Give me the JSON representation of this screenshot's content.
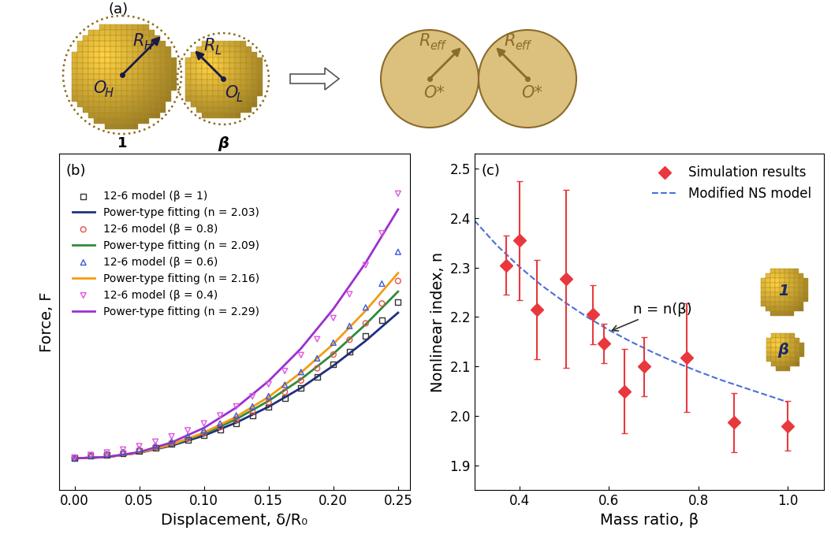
{
  "diagram": {
    "panel_label": "(a)",
    "before": {
      "radius_labels": [
        {
          "main": "R",
          "sub": "H"
        },
        {
          "main": "R",
          "sub": "L"
        }
      ],
      "center_labels": [
        {
          "main": "O",
          "sub": "H"
        },
        {
          "main": "O",
          "sub": "L"
        }
      ],
      "mass_labels": [
        "1",
        "β"
      ]
    },
    "after": {
      "radius_label": {
        "main": "R",
        "sub": "eff"
      },
      "center_label": "O*"
    }
  },
  "chart_data": [
    {
      "type": "line",
      "title": "(b)",
      "x_label": "Displacement, δ/R₀",
      "y_label": "Force, F",
      "xlim": [
        -0.012,
        0.259
      ],
      "ylim": [
        -0.12,
        1.15
      ],
      "xticks": [
        {
          "value": 0.0,
          "label": "0.00"
        },
        {
          "value": 0.05,
          "label": "0.05"
        },
        {
          "value": 0.1,
          "label": "0.10"
        },
        {
          "value": 0.15,
          "label": "0.15"
        },
        {
          "value": 0.2,
          "label": "0.20"
        },
        {
          "value": 0.25,
          "label": "0.25"
        }
      ],
      "yticks": [],
      "tick_labels": "x",
      "grid": false,
      "legend": "upper left",
      "series": [
        {
          "name": "12-6 model (β = 1)",
          "type": "scatter",
          "marker": "square",
          "color": "#333333",
          "x": [
            0,
            0.0125,
            0.025,
            0.0375,
            0.05,
            0.0625,
            0.075,
            0.0875,
            0.1,
            0.1125,
            0.125,
            0.1375,
            0.15,
            0.1625,
            0.175,
            0.1875,
            0.2,
            0.2125,
            0.225,
            0.2375,
            0.25
          ],
          "values": [
            0.002,
            0.009,
            0.013,
            0.02,
            0.029,
            0.04,
            0.054,
            0.069,
            0.087,
            0.108,
            0.133,
            0.161,
            0.193,
            0.228,
            0.266,
            0.307,
            0.354,
            0.402,
            0.462,
            0.522,
            0.59
          ]
        },
        {
          "name": "Power-type fitting (n = 2.03)",
          "type": "line",
          "line_style": "solid",
          "color": "#1f2f80",
          "x": [
            0,
            0.025,
            0.05,
            0.075,
            0.1,
            0.125,
            0.15,
            0.175,
            0.2,
            0.225,
            0.25
          ],
          "values": [
            0,
            0.0051,
            0.021,
            0.048,
            0.086,
            0.135,
            0.195,
            0.266,
            0.35,
            0.444,
            0.55
          ]
        },
        {
          "name": "12-6 model (β = 0.8)",
          "type": "scatter",
          "marker": "circle",
          "color": "#e8504a",
          "x": [
            0,
            0.0125,
            0.025,
            0.0375,
            0.05,
            0.0625,
            0.075,
            0.0875,
            0.1,
            0.1125,
            0.125,
            0.1375,
            0.15,
            0.1625,
            0.175,
            0.1875,
            0.2,
            0.2125,
            0.225,
            0.2375,
            0.25
          ],
          "values": [
            0.002,
            0.01,
            0.014,
            0.021,
            0.031,
            0.043,
            0.058,
            0.075,
            0.095,
            0.118,
            0.146,
            0.177,
            0.212,
            0.251,
            0.294,
            0.34,
            0.392,
            0.448,
            0.51,
            0.585,
            0.67
          ]
        },
        {
          "name": "Power-type fitting (n = 2.09)",
          "type": "line",
          "line_style": "solid",
          "color": "#2e8b3a",
          "x": [
            0,
            0.025,
            0.05,
            0.075,
            0.1,
            0.125,
            0.15,
            0.175,
            0.2,
            0.225,
            0.25
          ],
          "values": [
            0,
            0.0051,
            0.0218,
            0.0509,
            0.0929,
            0.148,
            0.217,
            0.299,
            0.395,
            0.506,
            0.63
          ]
        },
        {
          "name": "12-6 model (β = 0.6)",
          "type": "scatter",
          "marker": "triangle",
          "color": "#3b5bdb",
          "x": [
            0,
            0.0125,
            0.025,
            0.0375,
            0.05,
            0.0625,
            0.075,
            0.0875,
            0.1,
            0.1125,
            0.125,
            0.1375,
            0.15,
            0.1625,
            0.175,
            0.1875,
            0.2,
            0.2125,
            0.225,
            0.2375,
            0.25
          ],
          "values": [
            0.002,
            0.011,
            0.016,
            0.024,
            0.034,
            0.048,
            0.064,
            0.083,
            0.106,
            0.132,
            0.162,
            0.196,
            0.235,
            0.278,
            0.326,
            0.378,
            0.437,
            0.5,
            0.57,
            0.66,
            0.78
          ]
        },
        {
          "name": "Power-type fitting (n = 2.16)",
          "type": "line",
          "line_style": "solid",
          "color": "#f39c12",
          "x": [
            0,
            0.025,
            0.05,
            0.075,
            0.1,
            0.125,
            0.15,
            0.175,
            0.2,
            0.225,
            0.25
          ],
          "values": [
            0,
            0.0048,
            0.0217,
            0.052,
            0.097,
            0.157,
            0.232,
            0.324,
            0.432,
            0.558,
            0.7
          ]
        },
        {
          "name": "12-6 model (β = 0.4)",
          "type": "scatter",
          "marker": "triangle_down",
          "color": "#e055e0",
          "x": [
            0,
            0.0125,
            0.025,
            0.0375,
            0.05,
            0.0625,
            0.075,
            0.0875,
            0.1,
            0.1125,
            0.125,
            0.1375,
            0.15,
            0.1625,
            0.175,
            0.1875,
            0.2,
            0.2125,
            0.225,
            0.2375,
            0.25
          ],
          "values": [
            0.003,
            0.013,
            0.022,
            0.033,
            0.046,
            0.063,
            0.083,
            0.106,
            0.132,
            0.162,
            0.196,
            0.234,
            0.28,
            0.33,
            0.39,
            0.45,
            0.53,
            0.62,
            0.73,
            0.85,
            1.0
          ]
        },
        {
          "name": "Power-type fitting (n = 2.29)",
          "type": "line",
          "line_style": "solid",
          "color": "#9b30d0",
          "x": [
            0,
            0.025,
            0.05,
            0.075,
            0.1,
            0.125,
            0.15,
            0.175,
            0.2,
            0.225,
            0.25
          ],
          "values": [
            0,
            0.0048,
            0.0236,
            0.06,
            0.115,
            0.192,
            0.292,
            0.415,
            0.564,
            0.739,
            0.94
          ]
        }
      ]
    },
    {
      "type": "scatter",
      "title": "(c)",
      "x_label": "Mass ratio, β",
      "y_label": "Nonlinear index, n",
      "xlim": [
        0.3,
        1.08
      ],
      "ylim": [
        1.85,
        2.53
      ],
      "xticks": [
        0.4,
        0.6,
        0.8,
        1.0
      ],
      "yticks": [
        1.9,
        2.0,
        2.1,
        2.2,
        2.3,
        2.4,
        2.5
      ],
      "grid": false,
      "legend": "upper right",
      "annotations": [
        {
          "text": "n = n(β)",
          "xy": [
            0.6,
            2.17
          ]
        }
      ],
      "inset_labels": [
        "1",
        "β"
      ],
      "series": [
        {
          "name": "Simulation results",
          "type": "scatter",
          "marker": "diamond",
          "color": "#e8383d",
          "x": [
            0.37,
            0.4,
            0.44,
            0.505,
            0.565,
            0.59,
            0.635,
            0.68,
            0.775,
            0.88,
            1.0
          ],
          "values": [
            2.305,
            2.355,
            2.215,
            2.278,
            2.205,
            2.147,
            2.05,
            2.1,
            2.118,
            1.987,
            1.98
          ],
          "errors": [
            0.06,
            0.12,
            0.1,
            0.18,
            0.06,
            0.04,
            0.085,
            0.06,
            0.11,
            0.06,
            0.05
          ]
        },
        {
          "name": "Modified NS model",
          "type": "line",
          "line_style": "dashed",
          "color": "#4a6fd8",
          "x": [
            0.3,
            0.35,
            0.4,
            0.45,
            0.5,
            0.55,
            0.6,
            0.65,
            0.7,
            0.75,
            0.8,
            0.85,
            0.9,
            0.95,
            1.0
          ],
          "values": [
            2.395,
            2.345,
            2.302,
            2.264,
            2.231,
            2.201,
            2.174,
            2.15,
            2.128,
            2.108,
            2.09,
            2.073,
            2.058,
            2.043,
            2.028
          ]
        }
      ]
    }
  ]
}
